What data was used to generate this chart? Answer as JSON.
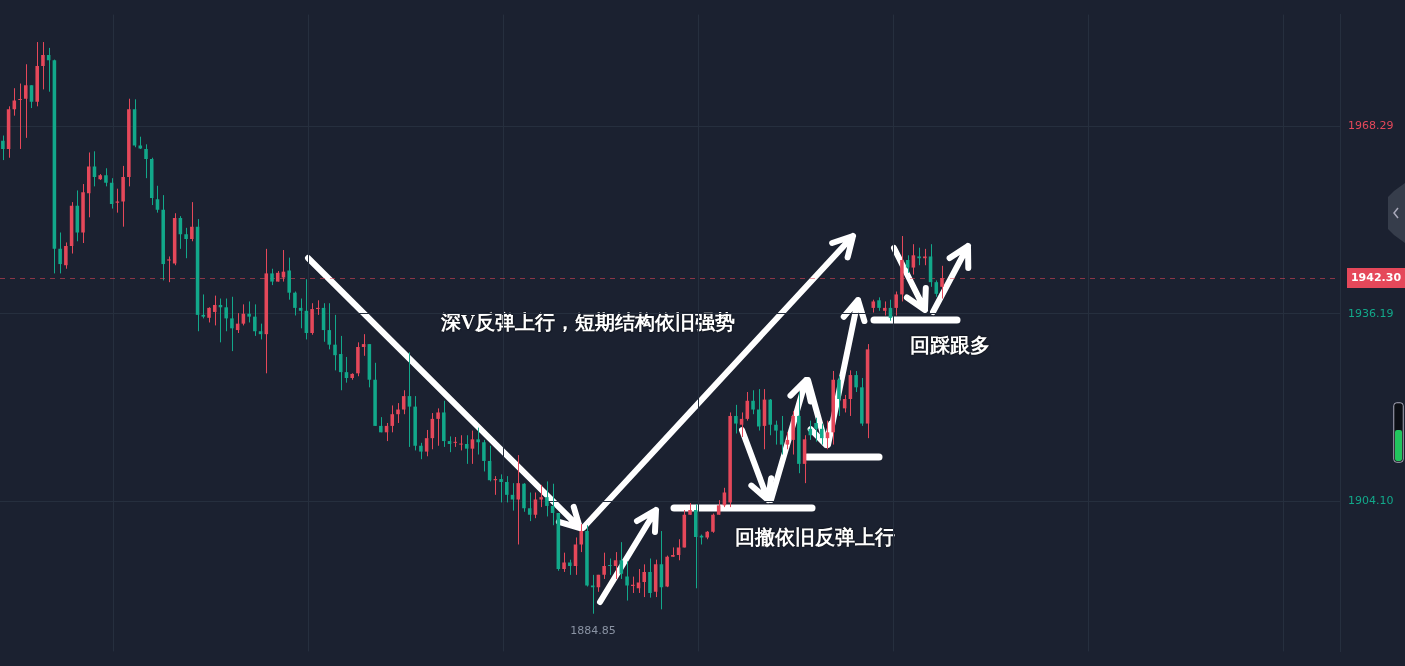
{
  "chart_data": {
    "type": "candlestick",
    "categories": [
      null,
      null,
      null,
      null,
      null,
      null,
      null,
      null,
      null,
      null,
      null,
      null,
      null,
      null,
      null,
      null,
      null,
      null,
      null,
      null,
      null,
      null,
      null,
      null,
      null,
      null,
      null,
      null,
      null,
      null,
      null,
      null,
      null,
      null,
      null,
      null,
      null,
      null,
      null,
      null,
      null,
      null,
      null,
      null,
      null,
      null,
      null,
      null,
      null,
      null,
      null,
      null,
      null,
      null,
      null,
      null,
      null,
      null,
      null,
      null,
      null,
      null,
      null,
      null,
      null,
      null,
      null,
      null,
      null,
      null,
      null,
      null,
      null,
      null,
      null,
      null,
      null,
      null,
      null,
      null,
      null,
      null,
      null,
      null,
      null,
      null,
      null,
      null,
      null,
      null,
      null,
      null,
      null,
      null,
      null,
      null,
      null,
      null,
      null,
      null,
      null,
      null,
      null,
      null,
      null,
      null,
      null,
      null,
      null,
      null,
      null,
      null,
      null,
      null,
      null,
      null,
      null,
      null,
      null,
      null,
      null,
      null,
      null,
      null,
      null,
      null,
      null,
      null,
      null,
      null,
      null,
      null,
      null,
      null,
      null,
      null,
      null,
      null,
      null,
      null,
      null,
      null,
      null,
      null,
      null,
      null,
      null,
      null,
      null,
      null,
      null,
      null,
      null,
      null,
      null,
      null,
      null,
      null,
      null,
      null,
      null,
      null,
      null,
      null,
      null,
      null,
      null,
      null,
      null,
      null,
      null,
      null,
      null,
      null,
      null,
      null,
      null,
      null,
      null,
      null,
      null,
      null,
      null,
      null,
      null,
      null,
      null,
      null,
      null,
      null,
      null,
      null,
      null,
      null,
      null,
      null,
      null,
      null,
      null,
      null,
      null,
      null,
      null,
      null,
      null,
      null,
      null,
      null,
      null,
      null,
      null,
      null,
      null,
      null,
      null,
      null,
      null,
      null,
      null,
      null,
      null,
      null,
      null,
      null,
      null,
      null,
      null,
      null,
      null,
      null,
      null,
      null,
      null,
      null
    ],
    "series": [
      {
        "color": "#e5485a",
        "ohlc": [
          null,
          [
            1964.4,
            1971.7,
            1962.9,
            1971.2
          ],
          [
            1971.2,
            1974.8,
            1970.1,
            1972.7
          ],
          [
            1972.8,
            1975.6,
            1964.4,
            1972.9
          ],
          [
            1973.0,
            1978.9,
            1966.3,
            1975.3
          ],
          null,
          [
            1972.5,
            1982.7,
            1971.7,
            1978.6
          ],
          [
            1978.6,
            1982.7,
            1974.6,
            1980.5
          ],
          null,
          null,
          null,
          [
            1944.5,
            1948.4,
            1943.9,
            1947.8
          ],
          [
            1947.8,
            1955.3,
            1946.5,
            1954.7
          ],
          null,
          [
            1950.1,
            1958.4,
            1948.3,
            1957.0
          ],
          [
            1956.8,
            1963.8,
            1952.7,
            1961.4
          ],
          null,
          [
            1959.2,
            1960.1,
            1959.1,
            1959.9
          ],
          null,
          null,
          [
            1955.2,
            1957.6,
            1953.5,
            1955.4
          ],
          [
            1955.4,
            1961.5,
            1951.1,
            1959.6
          ],
          [
            1959.6,
            1973.0,
            1958.0,
            1971.2
          ],
          null,
          null,
          null,
          null,
          null,
          null,
          [
            1945.3,
            1946.0,
            1941.6,
            1945.5
          ],
          [
            1944.8,
            1953.4,
            1944.5,
            1952.6
          ],
          null,
          null,
          [
            1949.0,
            1955.3,
            1948.6,
            1951.1
          ],
          null,
          null,
          [
            1935.5,
            1937.3,
            1934.7,
            1937.2
          ],
          [
            1936.5,
            1939.3,
            1934.2,
            1937.7
          ],
          null,
          null,
          null,
          [
            1933.4,
            1936.3,
            1932.9,
            1934.5
          ],
          [
            1934.5,
            1937.8,
            1934.2,
            1936.2
          ],
          null,
          null,
          null,
          [
            1932.7,
            1947.3,
            1926.0,
            1943.1
          ],
          null,
          [
            1941.7,
            1943.5,
            1941.7,
            1943.2
          ],
          [
            1942.4,
            1947.1,
            1941.7,
            1943.4
          ],
          null,
          null,
          null,
          null,
          [
            1932.9,
            1938.0,
            1932.6,
            1937.0
          ],
          [
            1937.0,
            1938.5,
            1936.0,
            1937.2
          ],
          null,
          null,
          null,
          null,
          null,
          [
            1925.2,
            1926.0,
            1924.9,
            1925.9
          ],
          [
            1926.0,
            1931.3,
            1925.5,
            1930.5
          ],
          [
            1930.5,
            1932.7,
            1929.0,
            1931.0
          ],
          null,
          null,
          null,
          [
            1915.9,
            1917.5,
            1914.4,
            1917.0
          ],
          [
            1917.0,
            1920.5,
            1915.9,
            1919.0
          ],
          [
            1919.0,
            1920.9,
            1917.5,
            1919.8
          ],
          [
            1919.8,
            1923.1,
            1919.0,
            1922.1
          ],
          null,
          null,
          null,
          [
            1912.6,
            1916.3,
            1911.8,
            1914.9
          ],
          [
            1914.9,
            1919.2,
            1913.0,
            1918.2
          ],
          [
            1918.2,
            1920.0,
            1913.6,
            1919.3
          ],
          null,
          null,
          [
            1914.1,
            1915.1,
            1913.4,
            1914.2
          ],
          [
            1913.8,
            1915.4,
            1912.8,
            1913.9
          ],
          null,
          [
            1913.1,
            1916.2,
            1910.5,
            1914.7
          ],
          null,
          null,
          null,
          [
            1907.7,
            1908.4,
            1905.2,
            1907.9
          ],
          null,
          null,
          null,
          [
            1904.4,
            1912.0,
            1896.7,
            1907.2
          ],
          null,
          null,
          [
            1901.8,
            1905.6,
            1901.2,
            1904.4
          ],
          [
            1904.4,
            1906.9,
            1903.1,
            1904.8
          ],
          null,
          null,
          null,
          [
            1892.5,
            1895.3,
            1892.0,
            1893.6
          ],
          null,
          [
            1893.0,
            1897.9,
            1891.5,
            1896.7
          ],
          [
            1896.7,
            1900.2,
            1895.4,
            1899.0
          ],
          null,
          null,
          [
            1889.4,
            1891.5,
            1888.6,
            1891.5
          ],
          [
            1891.5,
            1895.3,
            1890.8,
            1893.0
          ],
          null,
          [
            1893.0,
            1895.4,
            1890.8,
            1894.0
          ],
          null,
          null,
          [
            1889.6,
            1891.2,
            1888.4,
            1889.8
          ],
          [
            1889.2,
            1892.5,
            1888.4,
            1890.2
          ],
          [
            1890.3,
            1893.3,
            1887.7,
            1892.0
          ],
          null,
          [
            1888.6,
            1894.1,
            1887.7,
            1893.3
          ],
          null,
          [
            1889.5,
            1894.8,
            1889.4,
            1894.6
          ],
          [
            1894.6,
            1896.2,
            1894.6,
            1894.9
          ],
          [
            1894.9,
            1897.6,
            1894.0,
            1896.2
          ],
          [
            1896.2,
            1902.6,
            1896.2,
            1901.8
          ],
          [
            1901.8,
            1903.8,
            1901.8,
            1902.6
          ],
          null,
          null,
          [
            1897.9,
            1899.0,
            1897.6,
            1898.9
          ],
          [
            1898.9,
            1902.0,
            1898.7,
            1901.8
          ],
          [
            1901.8,
            1904.3,
            1901.8,
            1903.4
          ],
          [
            1903.4,
            1906.4,
            1903.1,
            1905.6
          ],
          [
            1903.9,
            1919.3,
            1903.1,
            1918.7
          ],
          null,
          [
            1917.2,
            1919.3,
            1915.1,
            1918.2
          ],
          [
            1918.2,
            1922.8,
            1917.9,
            1921.3
          ],
          null,
          null,
          [
            1917.0,
            1923.3,
            1913.0,
            1921.5
          ],
          null,
          null,
          null,
          [
            1913.8,
            1915.9,
            1913.0,
            1914.6
          ],
          [
            1914.6,
            1919.5,
            1912.1,
            1918.7
          ],
          null,
          [
            1910.5,
            1915.4,
            1907.2,
            1914.7
          ],
          null,
          null,
          null,
          [
            1914.9,
            1917.9,
            1913.0,
            1915.9
          ],
          [
            1915.9,
            1926.4,
            1913.8,
            1924.9
          ],
          null,
          [
            1920.0,
            1922.3,
            1919.3,
            1921.6
          ],
          [
            1921.6,
            1926.5,
            1918.7,
            1925.7
          ],
          null,
          null,
          [
            1917.4,
            1931.0,
            1914.9,
            1930.1
          ],
          [
            1937.2,
            1938.6,
            1936.4,
            1938.3
          ],
          null,
          [
            1936.7,
            1938.3,
            1935.9,
            1937.2
          ],
          null,
          [
            1937.2,
            1940.0,
            1935.9,
            1939.5
          ],
          [
            1939.5,
            1949.5,
            1938.3,
            1945.4
          ],
          null,
          [
            1944.1,
            1948.1,
            1942.9,
            1946.2
          ],
          null,
          [
            1945.7,
            1947.3,
            1944.5,
            1946.0
          ],
          null,
          null,
          [
            1940.8,
            1944.4,
            1938.8,
            1942.3
          ],
          null,
          null,
          null,
          null,
          null,
          null,
          null,
          null,
          null,
          null,
          null,
          null,
          null,
          null,
          null,
          null,
          null,
          null,
          null,
          null,
          null,
          null,
          null,
          null,
          null,
          null,
          null,
          null,
          null,
          null,
          null,
          null,
          null,
          null,
          null,
          null,
          null,
          null,
          null,
          null,
          null,
          null,
          null,
          null,
          null,
          null,
          null,
          null,
          null,
          null,
          null,
          null,
          null,
          null,
          null,
          null,
          null,
          null,
          null,
          null,
          null,
          null,
          null,
          null,
          null,
          null,
          null,
          null,
          null
        ]
      },
      {
        "color": "#12a88a",
        "ohlc": [
          [
            1965.8,
            1966.7,
            1962.5,
            1964.4
          ],
          null,
          null,
          null,
          null,
          [
            1975.3,
            1975.3,
            1971.4,
            1972.5
          ],
          null,
          null,
          [
            1980.5,
            1981.7,
            1974.2,
            1979.6
          ],
          [
            1979.6,
            1979.7,
            1943.1,
            1947.3
          ],
          [
            1947.3,
            1950.1,
            1943.1,
            1944.7
          ],
          null,
          null,
          [
            1954.7,
            1957.3,
            1948.6,
            1950.1
          ],
          null,
          null,
          [
            1961.4,
            1964.0,
            1958.0,
            1959.6
          ],
          null,
          [
            1959.9,
            1961.1,
            1958.0,
            1958.6
          ],
          [
            1958.6,
            1959.4,
            1954.2,
            1955.0
          ],
          null,
          null,
          null,
          [
            1971.2,
            1972.9,
            1964.7,
            1965.0
          ],
          [
            1965.0,
            1966.5,
            1964.4,
            1964.5
          ],
          [
            1964.4,
            1965.2,
            1959.4,
            1962.7
          ],
          [
            1962.7,
            1962.9,
            1954.8,
            1956.0
          ],
          [
            1955.8,
            1958.1,
            1953.5,
            1954.0
          ],
          [
            1954.0,
            1956.5,
            1941.9,
            1944.7
          ],
          null,
          null,
          [
            1952.6,
            1952.9,
            1947.3,
            1949.8
          ],
          [
            1949.8,
            1950.9,
            1945.7,
            1949.0
          ],
          null,
          [
            1951.1,
            1952.4,
            1933.2,
            1936.0
          ],
          [
            1936.0,
            1939.5,
            1935.4,
            1935.7
          ],
          null,
          null,
          [
            1937.7,
            1938.8,
            1931.3,
            1937.3
          ],
          [
            1937.3,
            1938.8,
            1933.2,
            1935.4
          ],
          [
            1935.4,
            1939.1,
            1929.8,
            1933.7
          ],
          null,
          null,
          [
            1936.2,
            1938.3,
            1934.7,
            1935.7
          ],
          [
            1935.7,
            1937.8,
            1932.4,
            1933.2
          ],
          [
            1933.2,
            1934.5,
            1931.8,
            1932.7
          ],
          null,
          [
            1943.1,
            1943.9,
            1941.1,
            1941.7
          ],
          null,
          null,
          [
            1943.6,
            1945.8,
            1938.6,
            1939.8
          ],
          [
            1939.8,
            1940.0,
            1935.9,
            1937.2
          ],
          [
            1937.2,
            1938.8,
            1933.7,
            1936.7
          ],
          [
            1936.7,
            1942.1,
            1931.8,
            1932.9
          ],
          null,
          null,
          [
            1937.2,
            1938.0,
            1931.4,
            1933.4
          ],
          [
            1933.4,
            1938.0,
            1930.1,
            1930.9
          ],
          [
            1930.9,
            1936.0,
            1926.5,
            1929.1
          ],
          [
            1929.3,
            1932.4,
            1923.1,
            1926.2
          ],
          [
            1926.2,
            1928.8,
            1924.4,
            1925.2
          ],
          null,
          null,
          null,
          [
            1931.0,
            1931.0,
            1923.6,
            1924.9
          ],
          [
            1924.9,
            1927.8,
            1917.0,
            1917.0
          ],
          [
            1917.0,
            1918.5,
            1915.9,
            1915.9
          ],
          null,
          null,
          null,
          null,
          [
            1922.1,
            1929.6,
            1913.4,
            1920.3
          ],
          [
            1920.3,
            1922.1,
            1912.8,
            1913.6
          ],
          [
            1913.6,
            1914.1,
            1911.3,
            1912.6
          ],
          null,
          null,
          null,
          [
            1919.3,
            1921.3,
            1913.4,
            1914.4
          ],
          [
            1914.4,
            1915.2,
            1912.5,
            1913.9
          ],
          null,
          null,
          [
            1913.9,
            1915.4,
            1910.5,
            1913.1
          ],
          null,
          [
            1914.7,
            1916.7,
            1912.1,
            1914.2
          ],
          [
            1914.2,
            1914.6,
            1909.2,
            1911.0
          ],
          [
            1911.0,
            1913.6,
            1907.5,
            1907.7
          ],
          null,
          [
            1907.9,
            1908.7,
            1903.9,
            1907.4
          ],
          [
            1907.4,
            1908.4,
            1903.9,
            1905.2
          ],
          [
            1905.2,
            1907.2,
            1902.5,
            1904.4
          ],
          null,
          [
            1907.1,
            1907.2,
            1902.3,
            1902.9
          ],
          [
            1902.9,
            1905.6,
            1900.7,
            1901.8
          ],
          null,
          null,
          [
            1904.8,
            1907.5,
            1901.5,
            1903.3
          ],
          [
            1903.3,
            1907.1,
            1900.0,
            1902.1
          ],
          [
            1902.1,
            1902.1,
            1892.2,
            1892.5
          ],
          null,
          [
            1893.6,
            1894.1,
            1891.5,
            1893.0
          ],
          null,
          null,
          [
            1899.0,
            1900.0,
            1889.5,
            1889.7
          ],
          [
            1889.7,
            1891.5,
            1884.85,
            1889.4
          ],
          null,
          null,
          [
            1893.1,
            1894.3,
            1891.5,
            1893.0
          ],
          null,
          [
            1894.0,
            1897.1,
            1890.8,
            1891.7
          ],
          [
            1891.2,
            1893.8,
            1887.1,
            1889.7
          ],
          null,
          null,
          null,
          [
            1892.0,
            1894.3,
            1887.6,
            1888.4
          ],
          null,
          [
            1893.3,
            1899.0,
            1885.6,
            1889.4
          ],
          null,
          null,
          null,
          null,
          null,
          [
            1902.6,
            1903.6,
            1889.2,
            1898.0
          ],
          [
            1898.2,
            1898.4,
            1896.7,
            1897.9
          ],
          null,
          null,
          null,
          null,
          null,
          [
            1918.7,
            1920.6,
            1915.7,
            1917.4
          ],
          null,
          null,
          [
            1921.3,
            1923.1,
            1919.0,
            1919.8
          ],
          [
            1919.8,
            1923.3,
            1916.2,
            1916.9
          ],
          null,
          [
            1921.5,
            1921.6,
            1915.4,
            1917.2
          ],
          [
            1917.2,
            1917.9,
            1913.8,
            1916.2
          ],
          [
            1916.2,
            1918.7,
            1912.1,
            1913.8
          ],
          null,
          null,
          [
            1918.7,
            1922.8,
            1908.9,
            1910.5
          ],
          null,
          [
            1916.5,
            1917.9,
            1914.6,
            1915.4
          ],
          [
            1917.5,
            1918.4,
            1914.3,
            1916.5
          ],
          [
            1916.5,
            1917.4,
            1913.8,
            1914.9
          ],
          null,
          null,
          [
            1924.9,
            1925.5,
            1918.7,
            1921.6
          ],
          null,
          null,
          [
            1925.7,
            1926.4,
            1922.8,
            1923.6
          ],
          [
            1923.6,
            1925.2,
            1917.0,
            1917.4
          ],
          null,
          null,
          [
            1938.5,
            1939.0,
            1936.7,
            1937.2
          ],
          null,
          [
            1937.2,
            1938.6,
            1935.0,
            1935.5
          ],
          null,
          null,
          [
            1945.4,
            1946.2,
            1943.2,
            1944.1
          ],
          null,
          [
            1946.0,
            1947.5,
            1944.5,
            1945.7
          ],
          null,
          [
            1946.0,
            1948.1,
            1940.8,
            1941.6
          ],
          [
            1941.6,
            1941.9,
            1939.1,
            1939.6
          ],
          null,
          null,
          null,
          null,
          null,
          null,
          null,
          null,
          null,
          null,
          null,
          null,
          null,
          null,
          null,
          null,
          null,
          null,
          null,
          null,
          null,
          null,
          null,
          null,
          null,
          null,
          null,
          null,
          null,
          null,
          null,
          null,
          null,
          null,
          null,
          null,
          null,
          null,
          null,
          null,
          null,
          null,
          null,
          null,
          null,
          null,
          null,
          null,
          null,
          null,
          null,
          null,
          null,
          null,
          null,
          null,
          null,
          null,
          null,
          null,
          null,
          null,
          null,
          null,
          null,
          null,
          null,
          null,
          null,
          null
        ]
      }
    ],
    "ylim": [
      1878.4,
      1987.4
    ],
    "yticks": [
      1968.29,
      1936.19,
      {
        "value": 1904.1,
        "label": "1904.10"
      }
    ],
    "tick_labels": "y",
    "grid": true,
    "legend": false,
    "ref_lines": [
      {
        "axis": "y",
        "value": 1942.3,
        "label": "1942.30",
        "color": "#e5485a",
        "line_style": "dashed"
      }
    ],
    "annotations": [
      "深V反弹上行，短期结构依旧强势",
      "回撤依旧反弹上行",
      "回踩跟多",
      "1884.85"
    ]
  }
}
